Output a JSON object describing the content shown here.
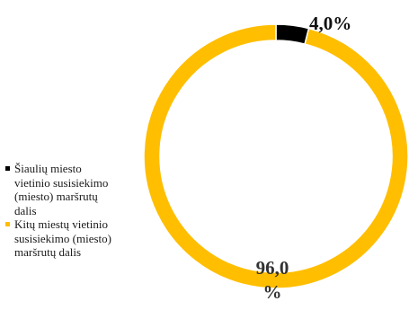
{
  "chart_data": {
    "type": "pie",
    "variant": "donut",
    "series": [
      {
        "name": "Šiaulių miesto\nvietinio susisiekimo\n(miesto) maršrutų\ndalis",
        "value": 4.0,
        "label": "4,0%",
        "color": "#000000"
      },
      {
        "name": "Kitų miestų vietinio\nsusisiekimo (miesto)\nmaršrutų dalis",
        "value": 96.0,
        "label": "96,0\n%",
        "color": "#FFBE00"
      }
    ],
    "legend_position": "left"
  }
}
